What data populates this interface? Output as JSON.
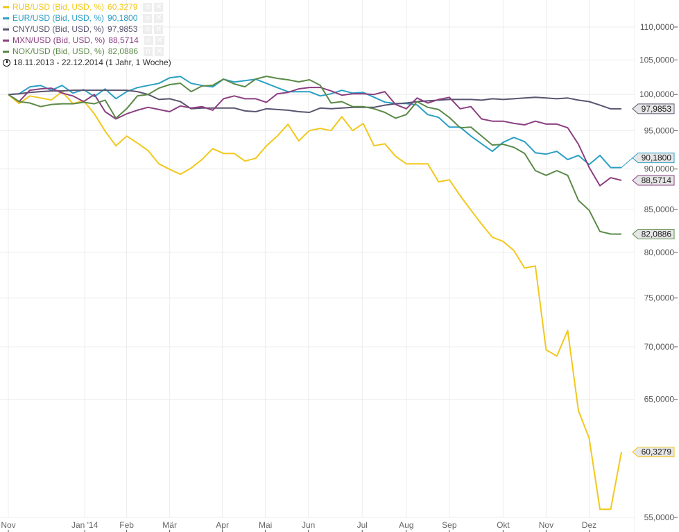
{
  "legend": {
    "period": "18.11.2013 - 22.12.2014 (1 Jahr, 1 Woche)"
  },
  "chart_data": {
    "type": "line",
    "title": "",
    "xlabel": "",
    "ylabel": "",
    "yscale": "log",
    "ylim": [
      55,
      110
    ],
    "yticks": [
      "110,0000",
      "105,0000",
      "100,0000",
      "95,0000",
      "90,0000",
      "85,0000",
      "80,0000",
      "75,0000",
      "70,0000",
      "65,0000",
      "55,0000"
    ],
    "ytick_values": [
      110,
      105,
      100,
      95,
      90,
      85,
      80,
      75,
      70,
      65,
      55
    ],
    "xticks": [
      "Nov",
      "Jan '14",
      "Feb",
      "Mär",
      "Apr",
      "Mai",
      "Jun",
      "Jul",
      "Aug",
      "Sep",
      "Okt",
      "Nov",
      "Dez"
    ],
    "xtick_weeks": [
      0,
      7.1,
      11,
      15,
      19.9,
      23.9,
      27.9,
      32.9,
      37,
      41,
      46,
      50,
      54
    ],
    "x_start": "18.11.2013",
    "x_end": "22.12.2014",
    "grid": true,
    "legend_position": "top-left",
    "series": [
      {
        "name": "RUB/USD (Bid, USD, %)",
        "last": "60,3279",
        "color": "#f2c81c",
        "values": [
          100.0,
          98.73,
          99.8,
          99.51,
          99.22,
          100.39,
          98.73,
          99.12,
          97.29,
          94.94,
          93.0,
          94.29,
          93.37,
          92.37,
          90.66,
          89.95,
          89.34,
          90.13,
          91.21,
          92.63,
          92.01,
          92.01,
          91.02,
          91.38,
          93.0,
          94.29,
          95.87,
          93.64,
          95.03,
          95.31,
          95.03,
          96.91,
          95.03,
          95.97,
          93.0,
          93.27,
          91.64,
          90.66,
          90.66,
          90.66,
          88.38,
          88.64,
          86.67,
          84.93,
          83.26,
          81.73,
          81.24,
          80.21,
          78.24,
          78.47,
          69.7,
          69.09,
          71.64,
          63.96,
          61.51,
          55.64,
          55.64,
          60.33
        ]
      },
      {
        "name": "EUR/USD (Bid, USD, %)",
        "last": "90,1800",
        "color": "#2b9fc4",
        "values": [
          100.0,
          100.1,
          101.08,
          101.28,
          100.59,
          101.28,
          100.2,
          100.69,
          99.71,
          100.79,
          99.41,
          100.39,
          100.98,
          101.28,
          101.58,
          102.38,
          102.58,
          101.58,
          101.28,
          101.08,
          102.18,
          101.78,
          101.98,
          102.18,
          101.58,
          100.98,
          100.39,
          100.39,
          100.39,
          99.8,
          100.1,
          100.59,
          100.2,
          100.29,
          99.61,
          98.93,
          98.73,
          98.73,
          98.54,
          97.2,
          96.82,
          95.5,
          95.5,
          94.29,
          93.27,
          92.28,
          93.46,
          94.1,
          93.55,
          92.1,
          91.92,
          92.28,
          91.21,
          91.74,
          90.58,
          91.74,
          90.18,
          90.18
        ]
      },
      {
        "name": "CNY/USD (Bid, USD, %)",
        "last": "97,9853",
        "color": "#5a5470",
        "values": [
          100.0,
          100.1,
          100.3,
          100.4,
          100.5,
          100.5,
          100.6,
          100.6,
          100.6,
          100.6,
          100.6,
          100.6,
          100.4,
          100.0,
          99.3,
          99.4,
          99.0,
          98.0,
          98.1,
          98.1,
          98.1,
          98.1,
          97.7,
          97.6,
          98.0,
          97.9,
          97.8,
          97.6,
          97.5,
          98.1,
          98.0,
          98.1,
          98.2,
          98.2,
          98.2,
          98.5,
          98.7,
          98.8,
          99.0,
          99.1,
          99.2,
          99.3,
          99.3,
          99.3,
          99.2,
          99.4,
          99.3,
          99.4,
          99.5,
          99.6,
          99.5,
          99.4,
          99.5,
          99.2,
          99.0,
          98.5,
          97.99,
          97.99
        ]
      },
      {
        "name": "MXN/USD (Bid, USD, %)",
        "last": "88,5714",
        "color": "#8b3f80",
        "values": [
          100.0,
          99.0,
          100.6,
          100.8,
          100.9,
          100.2,
          99.8,
          99.0,
          100.0,
          97.6,
          96.6,
          97.3,
          97.8,
          98.2,
          97.9,
          97.6,
          98.4,
          98.1,
          98.3,
          97.8,
          99.4,
          99.8,
          99.4,
          99.4,
          98.9,
          100.1,
          100.3,
          100.8,
          101.0,
          101.0,
          100.5,
          99.9,
          100.1,
          100.1,
          100.0,
          100.4,
          98.6,
          98.0,
          99.5,
          98.8,
          99.3,
          99.6,
          98.0,
          98.3,
          96.6,
          96.3,
          96.3,
          96.0,
          95.8,
          96.3,
          95.9,
          95.9,
          95.4,
          93.2,
          90.2,
          87.9,
          88.9,
          88.57
        ]
      },
      {
        "name": "NOK/USD (Bid, USD, %)",
        "last": "82,0886",
        "color": "#5b8a48",
        "values": [
          100.0,
          99.0,
          98.8,
          98.3,
          98.6,
          98.7,
          98.7,
          98.9,
          98.7,
          99.2,
          96.7,
          98.0,
          99.8,
          100.0,
          100.9,
          101.4,
          101.6,
          100.4,
          101.2,
          101.3,
          102.2,
          101.5,
          101.1,
          102.2,
          102.6,
          102.3,
          102.1,
          101.8,
          102.1,
          101.3,
          98.8,
          99.0,
          98.3,
          98.3,
          98.0,
          97.5,
          96.7,
          97.2,
          99.0,
          98.2,
          97.9,
          96.8,
          95.4,
          95.5,
          94.3,
          93.1,
          93.2,
          92.8,
          92.0,
          89.8,
          89.2,
          89.8,
          89.2,
          86.1,
          84.9,
          82.4,
          82.1,
          82.09
        ]
      }
    ]
  }
}
